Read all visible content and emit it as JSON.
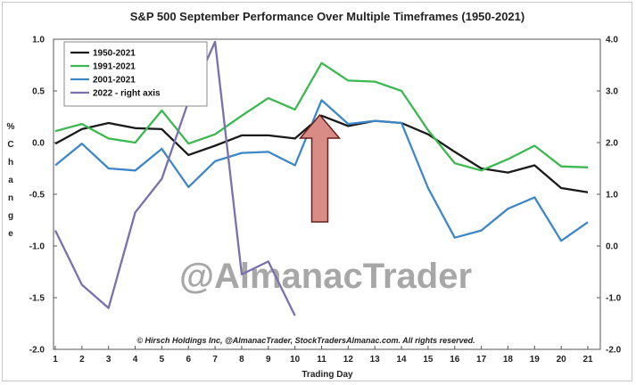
{
  "chart_data": {
    "type": "line",
    "title": "S&P 500 September Performance Over Multiple Timeframes (1950-2021)",
    "xlabel": "Trading Day",
    "ylabel": "% Change",
    "ylabel_chars": [
      "%",
      "C",
      "h",
      "a",
      "n",
      "g",
      "e"
    ],
    "x": [
      1,
      2,
      3,
      4,
      5,
      6,
      7,
      8,
      9,
      10,
      11,
      12,
      13,
      14,
      15,
      16,
      17,
      18,
      19,
      20,
      21
    ],
    "ylim": [
      -2.0,
      1.0
    ],
    "y2lim": [
      -2.0,
      4.0
    ],
    "yticks": [
      "1.0",
      "0.5",
      "0.0",
      "-0.5",
      "-1.0",
      "-1.5",
      "-2.0"
    ],
    "y2ticks": [
      "4.0",
      "3.0",
      "2.0",
      "1.0",
      "0.0",
      "-1.0",
      "-2.0"
    ],
    "y2ticks_colored": [
      false,
      false,
      false,
      false,
      false,
      true,
      true
    ],
    "grid": false,
    "legend_position": "top-left",
    "series": [
      {
        "name": "1950-2021",
        "color": "#1a1a1a",
        "axis": "left",
        "values": [
          -0.01,
          0.13,
          0.19,
          0.14,
          0.13,
          -0.12,
          -0.03,
          0.07,
          0.07,
          0.04,
          0.26,
          0.16,
          0.21,
          0.19,
          0.08,
          -0.09,
          -0.25,
          -0.29,
          -0.22,
          -0.44,
          -0.48
        ]
      },
      {
        "name": "1991-2021",
        "color": "#3cb850",
        "axis": "left",
        "values": [
          0.11,
          0.18,
          0.04,
          0.0,
          0.31,
          -0.01,
          0.08,
          0.26,
          0.43,
          0.32,
          0.77,
          0.6,
          0.59,
          0.5,
          0.12,
          -0.2,
          -0.27,
          -0.16,
          -0.03,
          -0.23,
          -0.24
        ]
      },
      {
        "name": "2001-2021",
        "color": "#3d87c9",
        "axis": "left",
        "values": [
          -0.22,
          -0.01,
          -0.25,
          -0.27,
          -0.06,
          -0.43,
          -0.18,
          -0.1,
          -0.09,
          -0.22,
          0.41,
          0.18,
          0.21,
          0.19,
          -0.44,
          -0.92,
          -0.85,
          -0.64,
          -0.53,
          -0.95,
          -0.77
        ]
      },
      {
        "name": "2022 - right axis",
        "color": "#7b6fae",
        "axis": "right",
        "values": [
          0.3,
          -0.75,
          -1.2,
          0.65,
          1.3,
          2.8,
          3.95,
          -0.55,
          -0.3,
          -1.35,
          null,
          null,
          null,
          null,
          null,
          null,
          null,
          null,
          null,
          null,
          null
        ]
      }
    ],
    "annotations": {
      "watermark": "@AlmanacTrader",
      "copyright": "© Hirsch Holdings Inc, @AlmanacTrader, StockTradersAlmanac.com. All rights reserved.",
      "arrow": {
        "x": 11,
        "y_tip": 0.25,
        "y_base": -0.75,
        "color": "#d98b86",
        "direction": "up"
      }
    },
    "colors": {
      "right_axis_negative": "#e03020",
      "arrow_fill": "#d98b86",
      "arrow_stroke": "#6a1f1a"
    }
  }
}
